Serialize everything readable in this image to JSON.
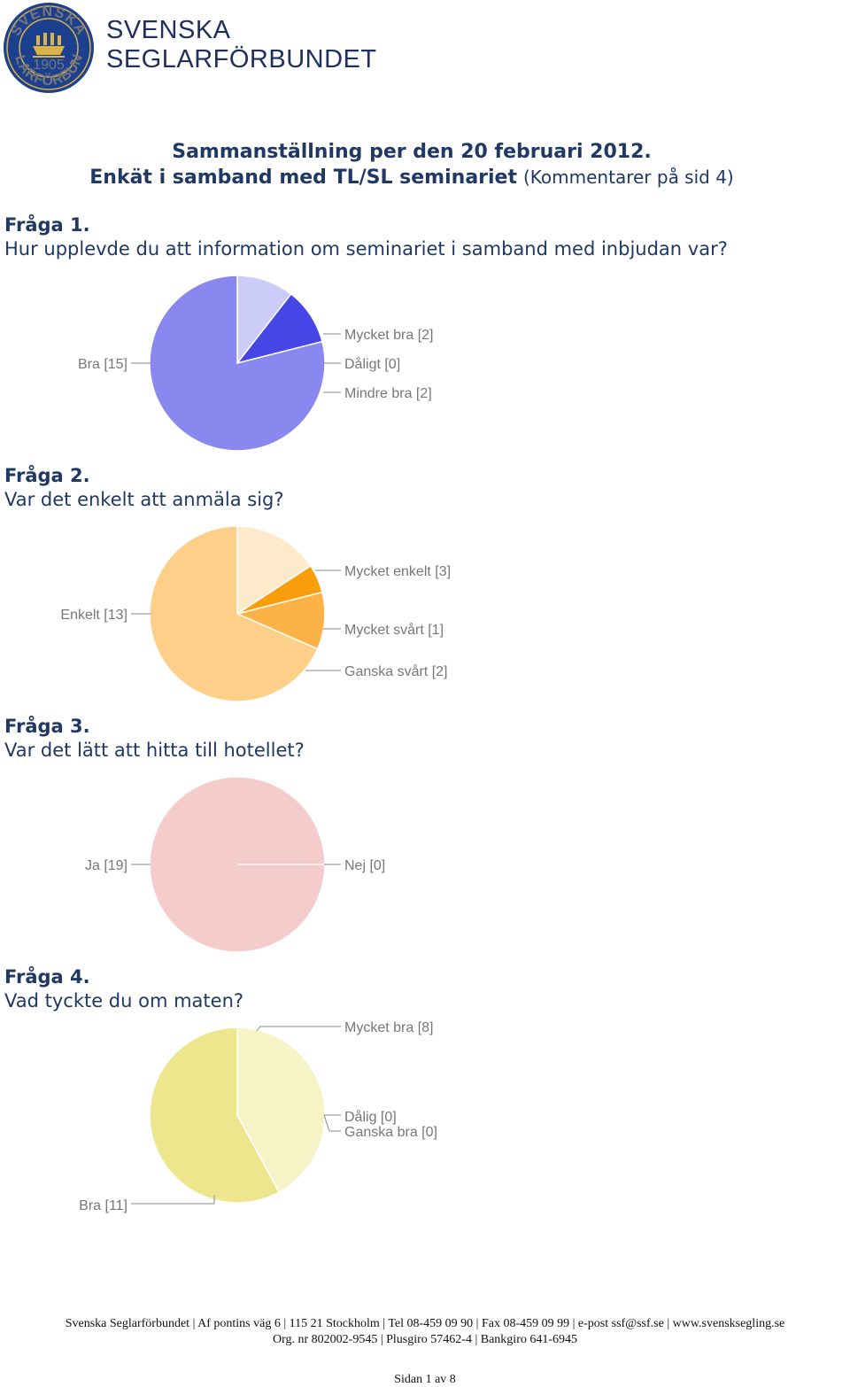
{
  "header": {
    "logo_text_top": "SVENSKA",
    "logo_text_bottom": "SEGLARFÖRBUNDET",
    "logo_year": "1905",
    "org_name_line1": "SVENSKA",
    "org_name_line2": "SEGLARFÖRBUNDET"
  },
  "title": {
    "line1": "Sammanställning per den 20 februari 2012.",
    "line2_bold": "Enkät i samband med TL/SL seminariet",
    "line2_normal": "(Kommentarer på sid 4)"
  },
  "questions": [
    {
      "label": "Fråga 1.",
      "text": "Hur upplevde du att information om seminariet i samband med inbjudan var?"
    },
    {
      "label": "Fråga 2.",
      "text": "Var det enkelt att anmäla sig?"
    },
    {
      "label": "Fråga 3.",
      "text": "Var det lätt att hitta till hotellet?"
    },
    {
      "label": "Fråga 4.",
      "text": "Vad tyckte du om maten?"
    }
  ],
  "chart_data": [
    {
      "type": "pie",
      "slices": [
        {
          "label": "Mycket bra [2]",
          "value": 2,
          "color": "#ccccf9"
        },
        {
          "label": "Dåligt [0]",
          "value": 0,
          "color": "#6666ee"
        },
        {
          "label": "Mindre bra [2]",
          "value": 2,
          "color": "#4646e6"
        },
        {
          "label": "Bra [15]",
          "value": 15,
          "color": "#8888ee"
        }
      ]
    },
    {
      "type": "pie",
      "slices": [
        {
          "label": "Mycket enkelt [3]",
          "value": 3,
          "color": "#fdeacb"
        },
        {
          "label": "Mycket svårt [1]",
          "value": 1,
          "color": "#f89e0c"
        },
        {
          "label": "Ganska svårt [2]",
          "value": 2,
          "color": "#fbb347"
        },
        {
          "label": "Enkelt [13]",
          "value": 13,
          "color": "#fdcf88"
        }
      ]
    },
    {
      "type": "pie",
      "slices": [
        {
          "label": "Nej [0]",
          "value": 0,
          "color": "#e9b0b0"
        },
        {
          "label": "Ja [19]",
          "value": 19,
          "color": "#f5cccc"
        }
      ]
    },
    {
      "type": "pie",
      "slices": [
        {
          "label": "Mycket bra [8]",
          "value": 8,
          "color": "#f6f3c6"
        },
        {
          "label": "Dålig [0]",
          "value": 0,
          "color": "#e8e28a"
        },
        {
          "label": "Ganska bra [0]",
          "value": 0,
          "color": "#e8e28a"
        },
        {
          "label": "Bra [11]",
          "value": 11,
          "color": "#ede68c"
        }
      ]
    }
  ],
  "footer": {
    "line1": "Svenska Seglarförbundet | Af pontins väg 6 | 115 21 Stockholm | Tel 08-459 09 90 | Fax 08-459 09 99 | e-post ssf@ssf.se | www.svensksegling.se",
    "line2": "Org. nr 802002-9545 | Plusgiro 57462-4 | Bankgiro 641-6945",
    "page": "Sidan 1 av 8"
  }
}
